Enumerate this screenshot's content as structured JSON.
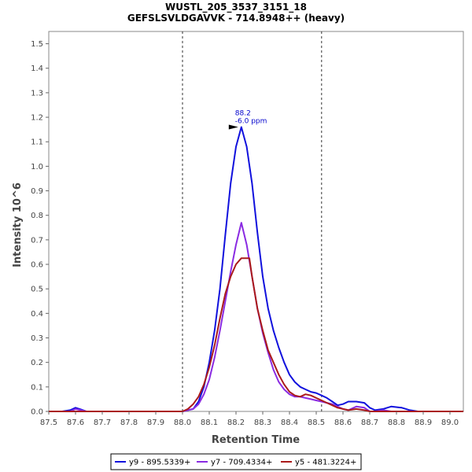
{
  "chart_data": {
    "type": "line",
    "title": "WUSTL_205_3537_3151_18",
    "subtitle": "GEFSLSVLDGAVVK - 714.8948++ (heavy)",
    "xlabel": "Retention Time",
    "ylabel": "Intensity 10^6",
    "xlim": [
      87.5,
      89.05
    ],
    "ylim": [
      0,
      1.55
    ],
    "xticks": [
      "87.5",
      "87.6",
      "87.7",
      "87.8",
      "87.9",
      "88.0",
      "88.1",
      "88.2",
      "88.3",
      "88.4",
      "88.5",
      "88.6",
      "88.7",
      "88.8",
      "88.9",
      "89.0"
    ],
    "yticks": [
      "0.0",
      "0.1",
      "0.2",
      "0.3",
      "0.4",
      "0.5",
      "0.6",
      "0.7",
      "0.8",
      "0.9",
      "1.0",
      "1.1",
      "1.2",
      "1.3",
      "1.4",
      "1.5"
    ],
    "grid": false,
    "legend_position": "bottom",
    "boundary_lines": [
      88.0,
      88.52
    ],
    "annotation": {
      "line1": "88.2",
      "line2": "-6.0 ppm",
      "x": 88.22,
      "y": 1.16
    },
    "series": [
      {
        "name": "y9 - 895.5339+",
        "color": "#1111dd",
        "points": [
          [
            87.5,
            0
          ],
          [
            87.55,
            0
          ],
          [
            87.58,
            0.005
          ],
          [
            87.6,
            0.015
          ],
          [
            87.62,
            0.008
          ],
          [
            87.64,
            0
          ],
          [
            87.7,
            0
          ],
          [
            87.8,
            0
          ],
          [
            87.9,
            0
          ],
          [
            88.0,
            0
          ],
          [
            88.02,
            0.005
          ],
          [
            88.04,
            0.01
          ],
          [
            88.06,
            0.04
          ],
          [
            88.08,
            0.1
          ],
          [
            88.1,
            0.2
          ],
          [
            88.12,
            0.33
          ],
          [
            88.14,
            0.5
          ],
          [
            88.16,
            0.72
          ],
          [
            88.18,
            0.93
          ],
          [
            88.2,
            1.08
          ],
          [
            88.22,
            1.16
          ],
          [
            88.24,
            1.08
          ],
          [
            88.26,
            0.93
          ],
          [
            88.28,
            0.73
          ],
          [
            88.3,
            0.55
          ],
          [
            88.32,
            0.42
          ],
          [
            88.34,
            0.33
          ],
          [
            88.36,
            0.26
          ],
          [
            88.38,
            0.2
          ],
          [
            88.4,
            0.15
          ],
          [
            88.42,
            0.12
          ],
          [
            88.44,
            0.1
          ],
          [
            88.46,
            0.09
          ],
          [
            88.48,
            0.08
          ],
          [
            88.5,
            0.075
          ],
          [
            88.52,
            0.065
          ],
          [
            88.54,
            0.055
          ],
          [
            88.56,
            0.04
          ],
          [
            88.58,
            0.025
          ],
          [
            88.6,
            0.03
          ],
          [
            88.62,
            0.04
          ],
          [
            88.65,
            0.04
          ],
          [
            88.68,
            0.035
          ],
          [
            88.7,
            0.015
          ],
          [
            88.72,
            0.005
          ],
          [
            88.75,
            0.01
          ],
          [
            88.78,
            0.02
          ],
          [
            88.82,
            0.015
          ],
          [
            88.85,
            0.005
          ],
          [
            88.88,
            0
          ],
          [
            88.95,
            0
          ],
          [
            89.05,
            0
          ]
        ]
      },
      {
        "name": "y7 - 709.4334+",
        "color": "#8a2be2",
        "points": [
          [
            87.5,
            0
          ],
          [
            87.58,
            0
          ],
          [
            87.6,
            0.01
          ],
          [
            87.62,
            0.005
          ],
          [
            87.64,
            0
          ],
          [
            87.7,
            0
          ],
          [
            87.8,
            0
          ],
          [
            87.9,
            0
          ],
          [
            88.0,
            0
          ],
          [
            88.02,
            0.005
          ],
          [
            88.04,
            0.01
          ],
          [
            88.06,
            0.03
          ],
          [
            88.08,
            0.07
          ],
          [
            88.1,
            0.13
          ],
          [
            88.12,
            0.22
          ],
          [
            88.14,
            0.33
          ],
          [
            88.16,
            0.45
          ],
          [
            88.18,
            0.57
          ],
          [
            88.2,
            0.68
          ],
          [
            88.22,
            0.77
          ],
          [
            88.24,
            0.68
          ],
          [
            88.26,
            0.55
          ],
          [
            88.28,
            0.42
          ],
          [
            88.3,
            0.32
          ],
          [
            88.32,
            0.24
          ],
          [
            88.34,
            0.17
          ],
          [
            88.36,
            0.12
          ],
          [
            88.38,
            0.09
          ],
          [
            88.4,
            0.07
          ],
          [
            88.42,
            0.06
          ],
          [
            88.44,
            0.06
          ],
          [
            88.46,
            0.055
          ],
          [
            88.48,
            0.05
          ],
          [
            88.5,
            0.045
          ],
          [
            88.52,
            0.04
          ],
          [
            88.54,
            0.035
          ],
          [
            88.56,
            0.03
          ],
          [
            88.58,
            0.02
          ],
          [
            88.6,
            0.01
          ],
          [
            88.62,
            0.005
          ],
          [
            88.65,
            0.02
          ],
          [
            88.68,
            0.015
          ],
          [
            88.7,
            0
          ],
          [
            88.72,
            0
          ],
          [
            88.75,
            0.005
          ],
          [
            88.78,
            0
          ],
          [
            89.05,
            0
          ]
        ]
      },
      {
        "name": "y5 - 481.3224+",
        "color": "#aa1a1a",
        "points": [
          [
            87.5,
            0
          ],
          [
            87.9,
            0
          ],
          [
            88.0,
            0
          ],
          [
            88.02,
            0.01
          ],
          [
            88.04,
            0.03
          ],
          [
            88.06,
            0.06
          ],
          [
            88.08,
            0.11
          ],
          [
            88.1,
            0.18
          ],
          [
            88.12,
            0.27
          ],
          [
            88.14,
            0.38
          ],
          [
            88.16,
            0.48
          ],
          [
            88.18,
            0.55
          ],
          [
            88.2,
            0.6
          ],
          [
            88.22,
            0.625
          ],
          [
            88.25,
            0.625
          ],
          [
            88.26,
            0.55
          ],
          [
            88.28,
            0.42
          ],
          [
            88.3,
            0.33
          ],
          [
            88.32,
            0.25
          ],
          [
            88.34,
            0.2
          ],
          [
            88.36,
            0.15
          ],
          [
            88.38,
            0.11
          ],
          [
            88.4,
            0.08
          ],
          [
            88.42,
            0.065
          ],
          [
            88.44,
            0.06
          ],
          [
            88.46,
            0.07
          ],
          [
            88.48,
            0.065
          ],
          [
            88.5,
            0.055
          ],
          [
            88.52,
            0.045
          ],
          [
            88.54,
            0.035
          ],
          [
            88.56,
            0.025
          ],
          [
            88.58,
            0.015
          ],
          [
            88.6,
            0.01
          ],
          [
            88.62,
            0.005
          ],
          [
            88.65,
            0.01
          ],
          [
            88.68,
            0.005
          ],
          [
            88.7,
            0
          ],
          [
            89.05,
            0
          ]
        ]
      }
    ]
  }
}
